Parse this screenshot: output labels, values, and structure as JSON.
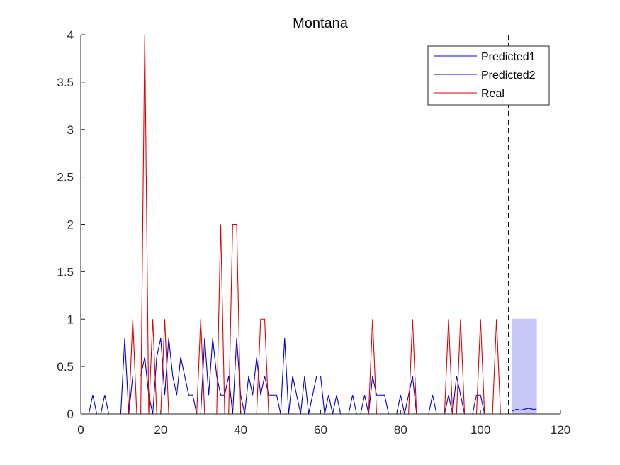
{
  "chart_data": {
    "type": "line",
    "title": "Montana",
    "xlabel": "",
    "ylabel": "",
    "xlim": [
      0,
      120
    ],
    "ylim": [
      0,
      4
    ],
    "xticks": [
      0,
      20,
      40,
      60,
      80,
      100,
      120
    ],
    "yticks": [
      0,
      0.5,
      1,
      1.5,
      2,
      2.5,
      3,
      3.5,
      4
    ],
    "xtick_labels": [
      "0",
      "20",
      "40",
      "60",
      "80",
      "100",
      "120"
    ],
    "ytick_labels": [
      "0",
      "0.5",
      "1",
      "1.5",
      "2",
      "2.5",
      "3",
      "3.5",
      "4"
    ],
    "grid": false,
    "legend_position": "top-right",
    "vertical_line_x": 107,
    "series": [
      {
        "name": "Predicted1",
        "color": "#0000cc",
        "x": [
          1,
          2,
          3,
          4,
          5,
          6,
          7,
          8,
          9,
          10,
          11,
          12,
          13,
          14,
          15,
          16,
          17,
          18,
          19,
          20,
          21,
          22,
          23,
          24,
          25,
          26,
          27,
          28,
          29,
          30,
          31,
          32,
          33,
          34,
          35,
          36,
          37,
          38,
          39,
          40,
          41,
          42,
          43,
          44,
          45,
          46,
          47,
          48,
          49,
          50,
          51,
          52,
          53,
          54,
          55,
          56,
          57,
          58,
          59,
          60,
          61,
          62,
          63,
          64,
          65,
          66,
          67,
          68,
          69,
          70,
          71,
          72,
          73,
          74,
          75,
          76,
          77,
          78,
          79,
          80,
          81,
          82,
          83,
          84,
          85,
          86,
          87,
          88,
          89,
          90,
          91,
          92,
          93,
          94,
          95,
          96,
          97,
          98,
          99,
          100,
          101,
          102,
          103,
          104,
          105,
          106,
          107,
          108
        ],
        "values": [
          0,
          0,
          0.2,
          0,
          0,
          0.2,
          0,
          0,
          0,
          0,
          0.8,
          0,
          0.4,
          0.4,
          0.4,
          0.6,
          0.2,
          0,
          0.6,
          0.8,
          0.2,
          0.8,
          0.4,
          0.2,
          0.6,
          0.4,
          0.2,
          0.2,
          0,
          0,
          0.8,
          0.2,
          0.8,
          0.4,
          0.2,
          0.2,
          0.4,
          0,
          0.8,
          0.2,
          0,
          0.4,
          0.2,
          0.6,
          0.2,
          0.4,
          0.2,
          0.2,
          0.2,
          0,
          0.8,
          0,
          0.4,
          0.2,
          0,
          0.4,
          0,
          0.2,
          0.4,
          0.4,
          0,
          0.2,
          0,
          0.2,
          0,
          0,
          0,
          0.2,
          0,
          0,
          0.2,
          0,
          0.4,
          0.2,
          0.2,
          0.2,
          0,
          0,
          0,
          0.2,
          0,
          0.2,
          0.4,
          0,
          0,
          0,
          0,
          0.2,
          0,
          0,
          0,
          0.2,
          0,
          0.4,
          0.2,
          0,
          0,
          0,
          0.2,
          0.2,
          0,
          0,
          0,
          0,
          0,
          0,
          0,
          0
        ]
      },
      {
        "name": "Predicted2",
        "color": "#0000cc",
        "x": [
          108,
          109,
          110,
          111,
          112,
          113,
          114
        ],
        "values": [
          0.03,
          0.05,
          0.04,
          0.05,
          0.06,
          0.05,
          0.05
        ],
        "band_lower": [
          0,
          0,
          0,
          0,
          0,
          0,
          0
        ],
        "band_upper": [
          1,
          1,
          1,
          1,
          1,
          1,
          1
        ],
        "band_color": "#c8c8f7"
      },
      {
        "name": "Real",
        "color": "#e00000",
        "x": [
          1,
          2,
          3,
          4,
          5,
          6,
          7,
          8,
          9,
          10,
          11,
          12,
          13,
          14,
          15,
          16,
          17,
          18,
          19,
          20,
          21,
          22,
          23,
          24,
          25,
          26,
          27,
          28,
          29,
          30,
          31,
          32,
          33,
          34,
          35,
          36,
          37,
          38,
          39,
          40,
          41,
          42,
          43,
          44,
          45,
          46,
          47,
          48,
          49,
          50,
          51,
          52,
          53,
          54,
          55,
          56,
          57,
          58,
          59,
          60,
          61,
          62,
          63,
          64,
          65,
          66,
          67,
          68,
          69,
          70,
          71,
          72,
          73,
          74,
          75,
          76,
          77,
          78,
          79,
          80,
          81,
          82,
          83,
          84,
          85,
          86,
          87,
          88,
          89,
          90,
          91,
          92,
          93,
          94,
          95,
          96,
          97,
          98,
          99,
          100,
          101,
          102,
          103,
          104,
          105,
          106,
          107
        ],
        "values": [
          0,
          0,
          0,
          0,
          0,
          0,
          0,
          0,
          0,
          0,
          0,
          0,
          1,
          0,
          0,
          4,
          0,
          1,
          0,
          0,
          1,
          0,
          0,
          0,
          0,
          0,
          0,
          0,
          0,
          1,
          0,
          0,
          0,
          0,
          2,
          0,
          0,
          2,
          2,
          0,
          0,
          0,
          0,
          0,
          1,
          1,
          0,
          0,
          0,
          0,
          0,
          0,
          0,
          0,
          0,
          0,
          0,
          0,
          0,
          0,
          0,
          0,
          0,
          0,
          0,
          0,
          0,
          0,
          0,
          0,
          0,
          0,
          1,
          0,
          0,
          0,
          0,
          0,
          0,
          0,
          0,
          0,
          1,
          0,
          0,
          0,
          0,
          0,
          0,
          0,
          0,
          1,
          0,
          0,
          1,
          0,
          0,
          0,
          0,
          1,
          0,
          0,
          0,
          1,
          0,
          0,
          0
        ]
      }
    ]
  }
}
